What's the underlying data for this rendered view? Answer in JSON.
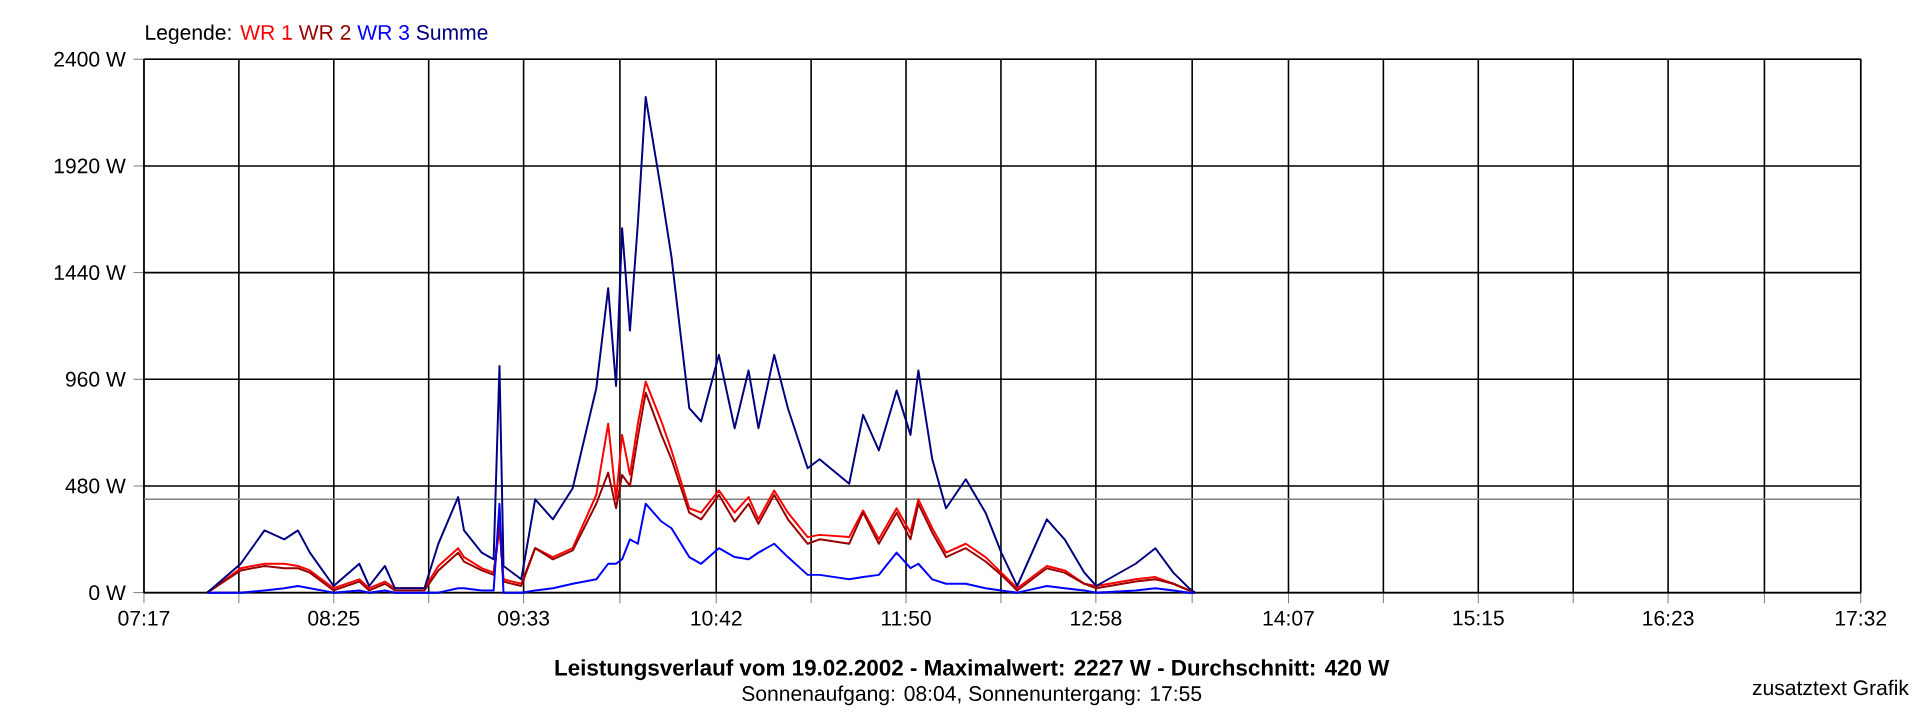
{
  "chart_data": {
    "type": "line",
    "title": "Leistungsverlauf vom 19.02.2002 - Maximalwert: 2227 W - Durchschnitt: 420 W",
    "annotations": [
      "Sonnenaufgang: 08:04, Sonnenuntergang: 17:55",
      "zusatztext Grafik"
    ],
    "legend_title": "Legende:",
    "legend": "top left",
    "grid": true,
    "x": [
      7.661,
      7.861,
      8.003,
      8.121,
      8.203,
      8.274,
      8.416,
      8.569,
      8.628,
      8.722,
      8.781,
      8.958,
      9.041,
      9.159,
      9.194,
      9.3,
      9.371,
      9.406,
      9.43,
      9.536,
      9.619,
      9.725,
      9.843,
      9.984,
      10.055,
      10.102,
      10.138,
      10.185,
      10.232,
      10.279,
      10.373,
      10.433,
      10.539,
      10.61,
      10.716,
      10.81,
      10.893,
      10.952,
      11.046,
      11.128,
      11.246,
      11.317,
      11.494,
      11.577,
      11.671,
      11.777,
      11.86,
      11.907,
      11.99,
      12.072,
      12.19,
      12.308,
      12.402,
      12.497,
      12.674,
      12.78,
      12.898,
      12.969,
      13.204,
      13.322,
      13.429,
      13.523,
      13.558
    ],
    "series": [
      {
        "name": "WR 1",
        "color": "#ff0000",
        "values": [
          0,
          110,
          130,
          130,
          120,
          100,
          20,
          60,
          20,
          50,
          20,
          20,
          120,
          200,
          160,
          110,
          90,
          290,
          60,
          40,
          200,
          160,
          200,
          440,
          760,
          420,
          710,
          530,
          760,
          950,
          770,
          640,
          380,
          360,
          460,
          360,
          430,
          330,
          460,
          360,
          250,
          260,
          250,
          370,
          240,
          380,
          270,
          420,
          290,
          180,
          220,
          160,
          90,
          20,
          120,
          100,
          40,
          30,
          60,
          70,
          40,
          10,
          0
        ]
      },
      {
        "name": "WR 2",
        "color": "#990000",
        "values": [
          0,
          100,
          120,
          110,
          110,
          90,
          10,
          50,
          10,
          40,
          10,
          10,
          100,
          180,
          140,
          100,
          80,
          310,
          50,
          30,
          200,
          150,
          190,
          400,
          540,
          380,
          530,
          480,
          700,
          900,
          710,
          600,
          360,
          330,
          440,
          320,
          400,
          310,
          440,
          330,
          220,
          240,
          220,
          360,
          220,
          360,
          240,
          400,
          270,
          160,
          200,
          140,
          80,
          10,
          110,
          90,
          40,
          20,
          50,
          60,
          40,
          10,
          0
        ]
      },
      {
        "name": "WR 3",
        "color": "#0000ff",
        "values": [
          0,
          0,
          10,
          20,
          30,
          20,
          0,
          10,
          0,
          10,
          0,
          0,
          0,
          20,
          20,
          10,
          10,
          400,
          0,
          0,
          10,
          20,
          40,
          60,
          130,
          130,
          150,
          240,
          220,
          400,
          320,
          290,
          160,
          130,
          200,
          160,
          150,
          180,
          220,
          160,
          80,
          80,
          60,
          70,
          80,
          180,
          110,
          130,
          60,
          40,
          40,
          20,
          10,
          0,
          30,
          20,
          10,
          0,
          10,
          20,
          10,
          0,
          0
        ]
      },
      {
        "name": "Summe",
        "color": "#000080",
        "values": [
          0,
          130,
          280,
          240,
          280,
          180,
          30,
          130,
          30,
          120,
          20,
          20,
          220,
          430,
          280,
          180,
          150,
          1020,
          120,
          60,
          420,
          330,
          470,
          920,
          1370,
          930,
          1640,
          1180,
          1660,
          2230,
          1800,
          1510,
          830,
          770,
          1070,
          740,
          1000,
          740,
          1070,
          830,
          560,
          600,
          490,
          800,
          640,
          910,
          710,
          1000,
          600,
          380,
          510,
          360,
          180,
          30,
          330,
          240,
          90,
          30,
          130,
          200,
          90,
          20,
          0
        ]
      }
    ],
    "xlim": [
      7.2833,
      17.5333
    ],
    "xticks": [
      {
        "value": 7.2833,
        "label": "07:17"
      },
      {
        "value": 7.85,
        "label": null
      },
      {
        "value": 8.4167,
        "label": "08:25"
      },
      {
        "value": 8.9833,
        "label": null
      },
      {
        "value": 9.55,
        "label": "09:33"
      },
      {
        "value": 10.125,
        "label": null
      },
      {
        "value": 10.7,
        "label": "10:42"
      },
      {
        "value": 11.2667,
        "label": null
      },
      {
        "value": 11.8333,
        "label": "11:50"
      },
      {
        "value": 12.4,
        "label": null
      },
      {
        "value": 12.9667,
        "label": "12:58"
      },
      {
        "value": 13.5417,
        "label": null
      },
      {
        "value": 14.1167,
        "label": "14:07"
      },
      {
        "value": 14.6833,
        "label": null
      },
      {
        "value": 15.25,
        "label": "15:15"
      },
      {
        "value": 15.8167,
        "label": null
      },
      {
        "value": 16.3833,
        "label": "16:23"
      },
      {
        "value": 16.9583,
        "label": null
      },
      {
        "value": 17.5333,
        "label": "17:32"
      }
    ],
    "ylim": [
      0,
      2400
    ],
    "yticks": [
      {
        "value": 0,
        "label": "0 W"
      },
      {
        "value": 480,
        "label": "480 W"
      },
      {
        "value": 960,
        "label": "960 W"
      },
      {
        "value": 1440,
        "label": "1440 W"
      },
      {
        "value": 1920,
        "label": "1920 W"
      },
      {
        "value": 2400,
        "label": "2400 W"
      }
    ],
    "ref_lines": [
      {
        "axis": "y",
        "value": 420,
        "color": "#808080"
      }
    ]
  }
}
